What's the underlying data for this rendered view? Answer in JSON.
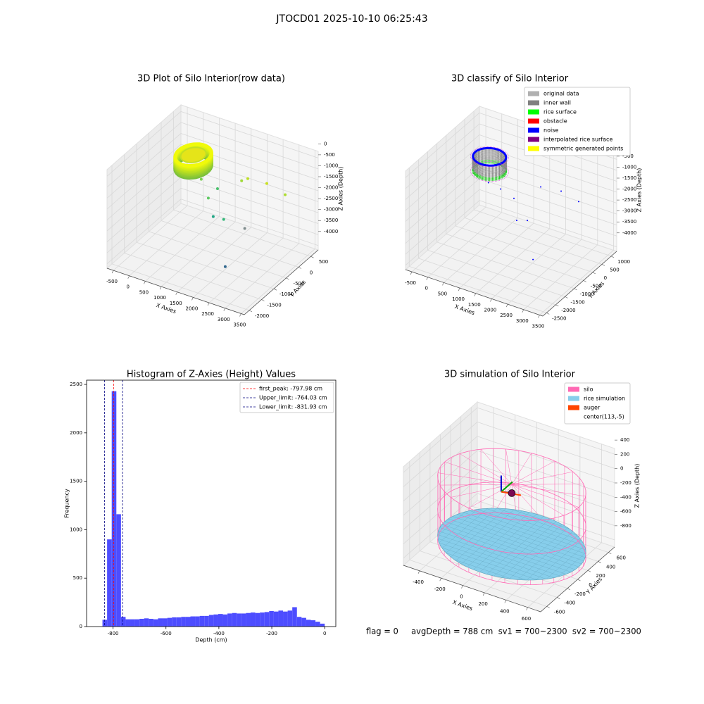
{
  "title": "JTOCD01 2025-10-10 06:25:43",
  "footer": "flag = 0     avgDepth = 788 cm  sv1 = 700~2300  sv2 = 700~2300",
  "chart_data": [
    {
      "type": "scatter3d",
      "title": "3D Plot of Silo Interior(row data)",
      "xlabel": "X Axies",
      "ylabel": "Y Axies",
      "zlabel": "Z Axies (Depth)",
      "xlim": [
        -700,
        3600
      ],
      "ylim": [
        -2200,
        800
      ],
      "zlim": [
        -4200,
        300
      ],
      "xticks": [
        -500,
        0,
        500,
        1000,
        1500,
        2000,
        2500,
        3000,
        3500
      ],
      "yticks": [
        -2000,
        -1500,
        -1000,
        -500,
        0,
        500
      ],
      "zticks": [
        -4000,
        -3500,
        -3000,
        -2500,
        -2000,
        -1500,
        -1000,
        -500,
        0
      ],
      "x": [
        2100,
        2065,
        1045,
        1355,
        830,
        1135,
        1270,
        1780,
        1865,
        2420,
        3125
      ],
      "y": [
        -1030,
        -193,
        -150,
        -127,
        -358,
        -466,
        -268,
        50,
        190,
        242,
        74
      ],
      "z": [
        -3900,
        -3000,
        -3000,
        -3000,
        -1200,
        -1800,
        -1500,
        -1200,
        -1200,
        -1200,
        -1200
      ],
      "colors": [
        "#31688e",
        "#7f8c8d",
        "#21a685",
        "#35b779",
        "#7ad151",
        "#5ec962",
        "#4ac16d",
        "#a0da39",
        "#bddf26",
        "#c8e020",
        "#addc30"
      ]
    },
    {
      "type": "scatter3d",
      "title": "3D classify of Silo Interior",
      "xlabel": "X Axies",
      "ylabel": "Y Axies",
      "zlabel": "Z Axies (Depth)",
      "xlim": [
        -700,
        3600
      ],
      "ylim": [
        -2700,
        1300
      ],
      "zlim": [
        -4200,
        300
      ],
      "xticks": [
        -500,
        0,
        500,
        1000,
        1500,
        2000,
        2500,
        3000,
        3500
      ],
      "yticks": [
        -2500,
        -2000,
        -1500,
        -1000,
        -500,
        0,
        500,
        1000
      ],
      "zticks": [
        -4000,
        -3500,
        -3000,
        -2500,
        -2000,
        -1500,
        -1000,
        -500,
        0
      ],
      "legend": "upper right",
      "series": [
        {
          "name": "original data",
          "color": "#b0b0b0"
        },
        {
          "name": "inner wall",
          "color": "#808080"
        },
        {
          "name": "rice surface",
          "color": "#00ff00"
        },
        {
          "name": "obstacle",
          "color": "#ff0000"
        },
        {
          "name": "noise",
          "color": "#0000ff",
          "x": [
            2090,
            1505,
            1745,
            1065,
            1550,
            2030,
            2600,
            3265,
            740
          ],
          "y": [
            -620,
            -490,
            -330,
            -600,
            -720,
            -100,
            20,
            -180,
            -700
          ],
          "z": [
            -3900,
            -2500,
            -2500,
            -1200,
            -1300,
            -1000,
            -1000,
            -1000,
            -1000
          ]
        },
        {
          "name": "interpolated rice surface",
          "color": "#800080"
        },
        {
          "name": "symmetric generated points",
          "color": "#ffff00"
        }
      ]
    },
    {
      "type": "histogram",
      "title": "Histogram of Z-Axies (Height) Values",
      "xlabel": "Depth (cm)",
      "ylabel": "Frequency",
      "color": "#4d4dff",
      "xlim": [
        -900,
        42
      ],
      "ylim": [
        0,
        2544
      ],
      "xticks": [
        -800,
        -600,
        -400,
        -200,
        0
      ],
      "yticks": [
        0,
        500,
        1000,
        1500,
        2000,
        2500
      ],
      "bins": [
        -840,
        -822.5,
        -805,
        -787.5,
        -770,
        -752.5,
        -735,
        -717.5,
        -700,
        -682.5,
        -665,
        -647.5,
        -630,
        -612.5,
        -595,
        -577.5,
        -560,
        -542.5,
        -525,
        -507.5,
        -490,
        -472.5,
        -455,
        -437.5,
        -420,
        -402.5,
        -385,
        -367.5,
        -350,
        -332.5,
        -315,
        -297.5,
        -280,
        -262.5,
        -245,
        -227.5,
        -210,
        -192.5,
        -175,
        -157.5,
        -140,
        -122.5,
        -105,
        -87.5,
        -70,
        -52.5,
        -35,
        -17.5,
        0
      ],
      "counts": [
        70,
        900,
        2430,
        1160,
        100,
        75,
        75,
        75,
        80,
        85,
        80,
        75,
        85,
        85,
        90,
        95,
        95,
        100,
        100,
        105,
        105,
        110,
        110,
        120,
        125,
        130,
        125,
        135,
        140,
        135,
        135,
        140,
        145,
        140,
        145,
        150,
        160,
        155,
        165,
        155,
        165,
        200,
        100,
        90,
        70,
        65,
        50,
        30
      ],
      "legend": "upper right",
      "lines": [
        {
          "name": "first_peak: -797.98 cm",
          "value": -797.98,
          "color": "#ff0000"
        },
        {
          "name": "Upper_limit: -764.03 cm",
          "value": -764.03,
          "color": "#000080"
        },
        {
          "name": "Lower_limit: -831.93 cm",
          "value": -831.93,
          "color": "#000080"
        }
      ]
    },
    {
      "type": "surface3d",
      "title": "3D simulation of Silo Interior",
      "xlabel": "X Axies",
      "ylabel": "Y Axies",
      "zlabel": "Z Axies (Depth)",
      "xlim": [
        -550,
        720
      ],
      "ylim": [
        -720,
        720
      ],
      "zlim": [
        -900,
        480
      ],
      "xticks": [
        -400,
        -200,
        0,
        200,
        400,
        600
      ],
      "yticks": [
        -600,
        -400,
        -200,
        0,
        200,
        400,
        600
      ],
      "zticks": [
        -800,
        -600,
        -400,
        -200,
        0,
        200,
        400
      ],
      "legend": "upper right",
      "series": [
        {
          "name": "silo",
          "color": "#ff69b4"
        },
        {
          "name": "rice simulation",
          "color": "#87ceeb"
        },
        {
          "name": "auger",
          "color": "#ff4500"
        },
        {
          "name": "center(113,-5)"
        }
      ]
    }
  ]
}
